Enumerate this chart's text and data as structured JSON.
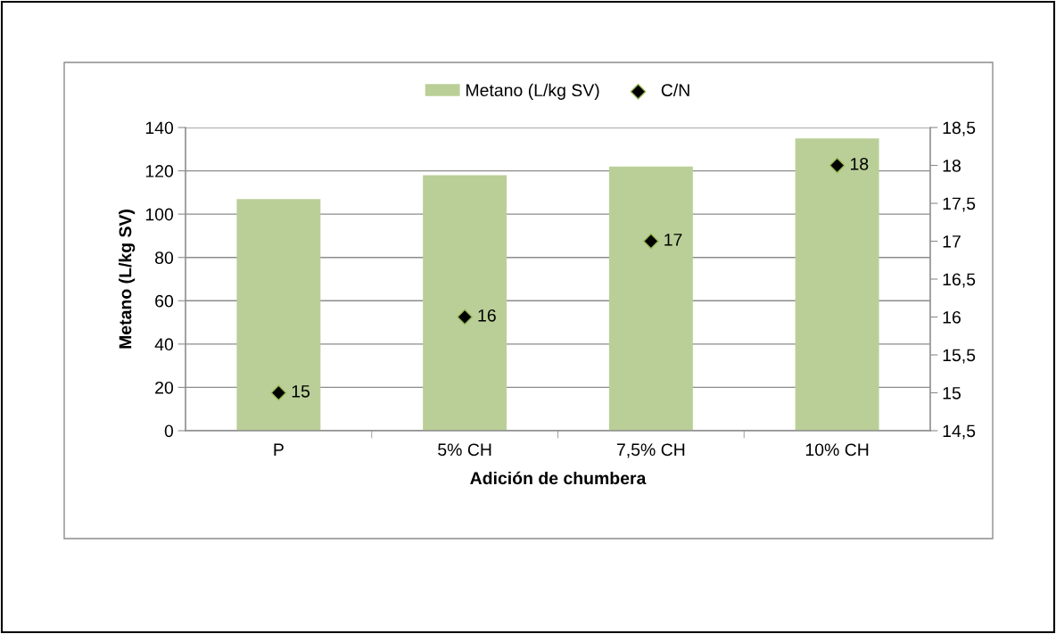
{
  "chart_data": {
    "type": "bar",
    "xlabel": "Adición de chumbera",
    "ylabel": "Metano (L/kg SV)",
    "categories": [
      "P",
      "5% CH",
      "7,5% CH",
      "10% CH"
    ],
    "series": [
      {
        "name": "Metano (L/kg SV)",
        "color": "#bacf97",
        "values": [
          107,
          118,
          122,
          135
        ]
      },
      {
        "name": "C/N",
        "type": "scatter",
        "axis": "y2",
        "color": "#000000",
        "marker": "diamond",
        "values": [
          15,
          16,
          17,
          18
        ],
        "value_labels": [
          "15",
          "16",
          "17",
          "18"
        ]
      }
    ],
    "ylim": [
      0,
      140
    ],
    "yticks": [
      0,
      20,
      40,
      60,
      80,
      100,
      120,
      140
    ],
    "y2lim": [
      14.5,
      18.5
    ],
    "y2ticks": [
      {
        "value": 14.5,
        "label": "14,5"
      },
      15,
      {
        "value": 15.5,
        "label": "15,5"
      },
      16,
      {
        "value": 16.5,
        "label": "16,5"
      },
      17,
      {
        "value": 17.5,
        "label": "17,5"
      },
      18,
      {
        "value": 18.5,
        "label": "18,5"
      }
    ],
    "grid": "y",
    "legend": "top"
  }
}
